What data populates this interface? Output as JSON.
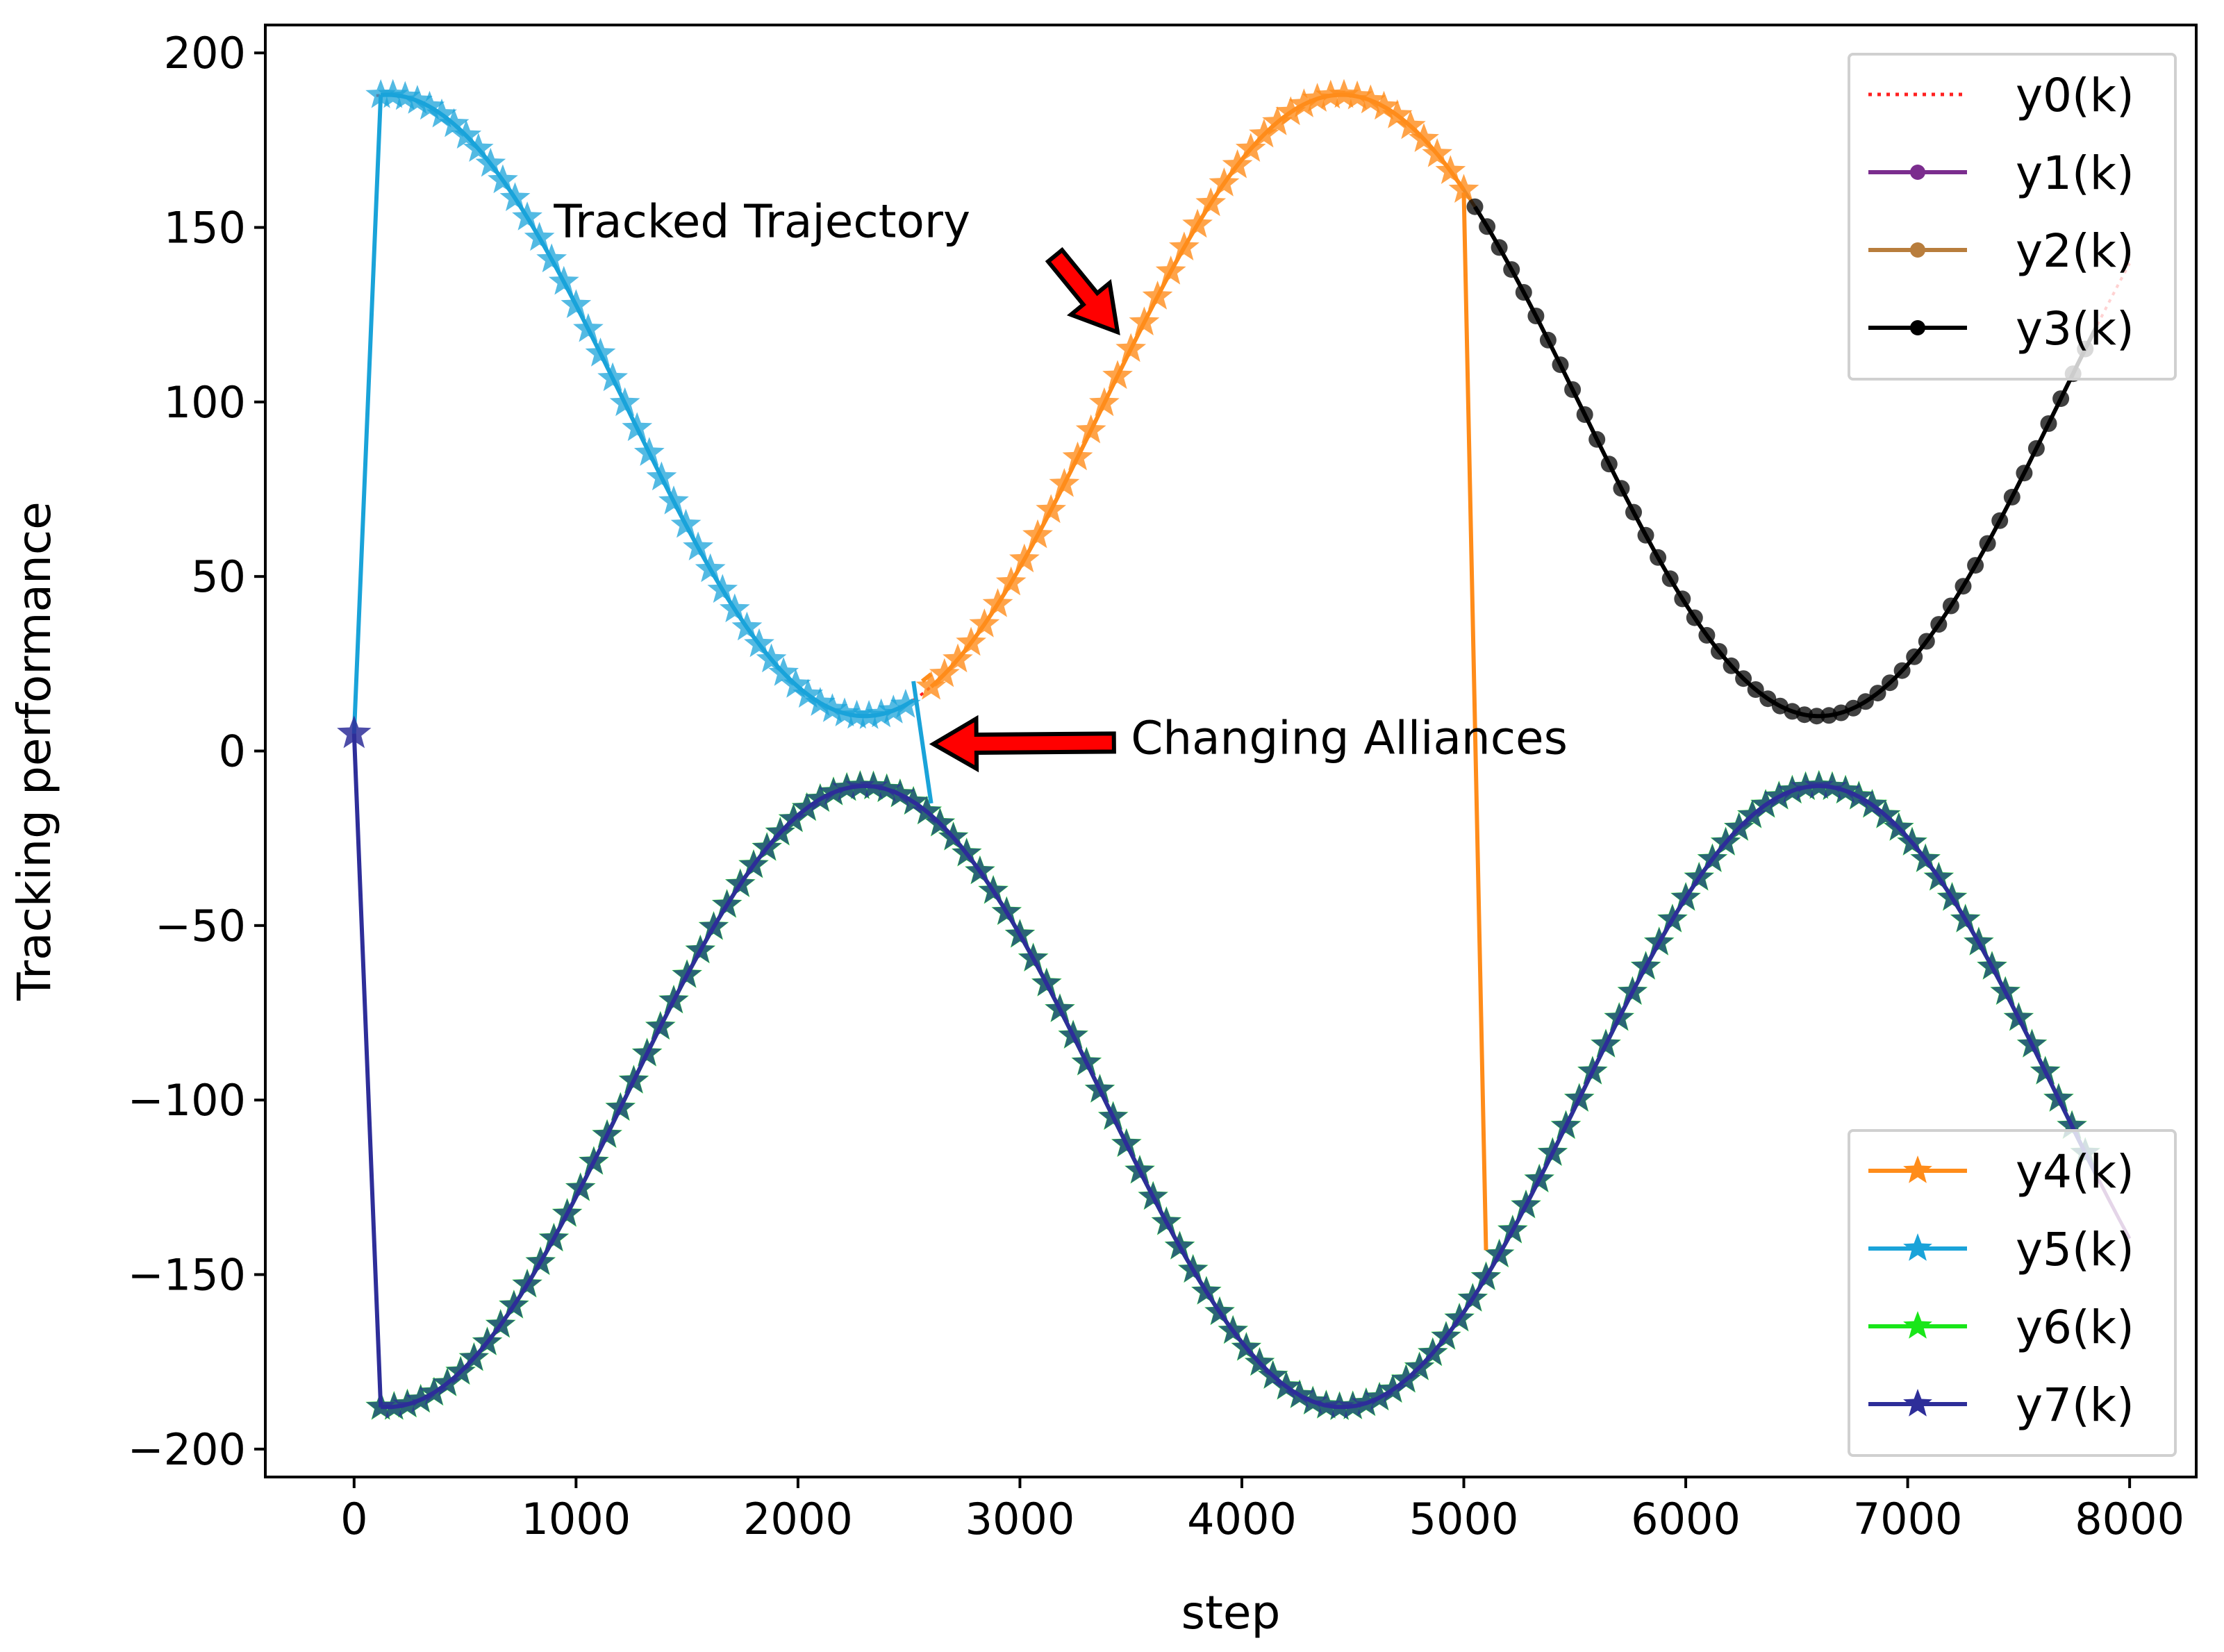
{
  "chart_data": {
    "type": "line",
    "title": "",
    "xlabel": "step",
    "ylabel": "Tracking performance",
    "xlim": [
      -400,
      8300
    ],
    "ylim": [
      -208,
      208
    ],
    "xticks": [
      0,
      1000,
      2000,
      3000,
      4000,
      5000,
      6000,
      7000,
      8000
    ],
    "xtick_labels": [
      "0",
      "1000",
      "2000",
      "3000",
      "4000",
      "5000",
      "6000",
      "7000",
      "8000"
    ],
    "yticks": [
      200,
      150,
      100,
      50,
      0,
      -50,
      -100,
      -150,
      -200
    ],
    "ytick_labels": [
      "200",
      "150",
      "100",
      "50",
      "0",
      "−50",
      "−100",
      "−150",
      "−200"
    ],
    "reference": {
      "description": "Tracked trajectory and its mirror",
      "upper": "y = 99 + 89*cos(2*pi*(step-150)/4300)",
      "lower": "y = -99 - 89*cos(2*pi*(step-150)/4300)"
    },
    "series": [
      {
        "name": "y0(k)",
        "color": "#ff2020",
        "style": "dotted",
        "segments": [
          {
            "x0": 100,
            "x1": 8000,
            "curve": "upper"
          }
        ]
      },
      {
        "name": "y1(k)",
        "color": "#7b2d8e",
        "style": "line-dot",
        "segments": [
          {
            "x0": 100,
            "x1": 8000,
            "curve": "lower"
          }
        ]
      },
      {
        "name": "y2(k)",
        "color": "#b87d3c",
        "style": "line-dot",
        "segments": [
          {
            "x0": 2600,
            "x1": 5050,
            "curve": "upper"
          }
        ]
      },
      {
        "name": "y3(k)",
        "color": "#000000",
        "style": "line-dot",
        "segments": [
          {
            "x0": 5050,
            "x1": 7850,
            "curve": "upper"
          }
        ]
      },
      {
        "name": "y4(k)",
        "color": "#ff8c1a",
        "style": "line-star",
        "segments": [
          {
            "x0": 2600,
            "x1": 5000,
            "curve": "upper"
          }
        ],
        "transition_points": [
          [
            2600,
            22
          ],
          [
            2560,
            20
          ]
        ],
        "switch_points": [
          [
            5000,
            160
          ],
          [
            5100,
            -143
          ]
        ]
      },
      {
        "name": "y5(k)",
        "color": "#1aa3d9",
        "style": "line-star",
        "start_points": [
          [
            0,
            5
          ],
          [
            120,
            188
          ]
        ],
        "segments": [
          {
            "x0": 120,
            "x1": 2520,
            "curve": "upper"
          }
        ],
        "switch_points": [
          [
            2520,
            20
          ],
          [
            2600,
            -15
          ]
        ]
      },
      {
        "name": "y6(k)",
        "color": "#19e619",
        "style": "line-star",
        "segments": [
          {
            "x0": 120,
            "x1": 7850,
            "curve": "lower"
          }
        ]
      },
      {
        "name": "y7(k)",
        "color": "#2e2e99",
        "style": "line-star",
        "start_points": [
          [
            0,
            5
          ],
          [
            120,
            -188
          ]
        ],
        "segments": [
          {
            "x0": 120,
            "x1": 7850,
            "curve": "lower"
          }
        ]
      }
    ],
    "legends": [
      {
        "placement": "top-right",
        "entries": [
          "y0(k)",
          "y1(k)",
          "y2(k)",
          "y3(k)"
        ]
      },
      {
        "placement": "bottom-right",
        "entries": [
          "y4(k)",
          "y5(k)",
          "y6(k)",
          "y7(k)"
        ]
      }
    ],
    "annotations": [
      {
        "text": "Tracked Trajectory",
        "text_at": [
          900,
          152
        ],
        "arrow_to": [
          3440,
          120
        ]
      },
      {
        "text": "Changing Alliances",
        "text_at": [
          3500,
          4
        ],
        "arrow_to": [
          2610,
          2
        ]
      }
    ]
  }
}
